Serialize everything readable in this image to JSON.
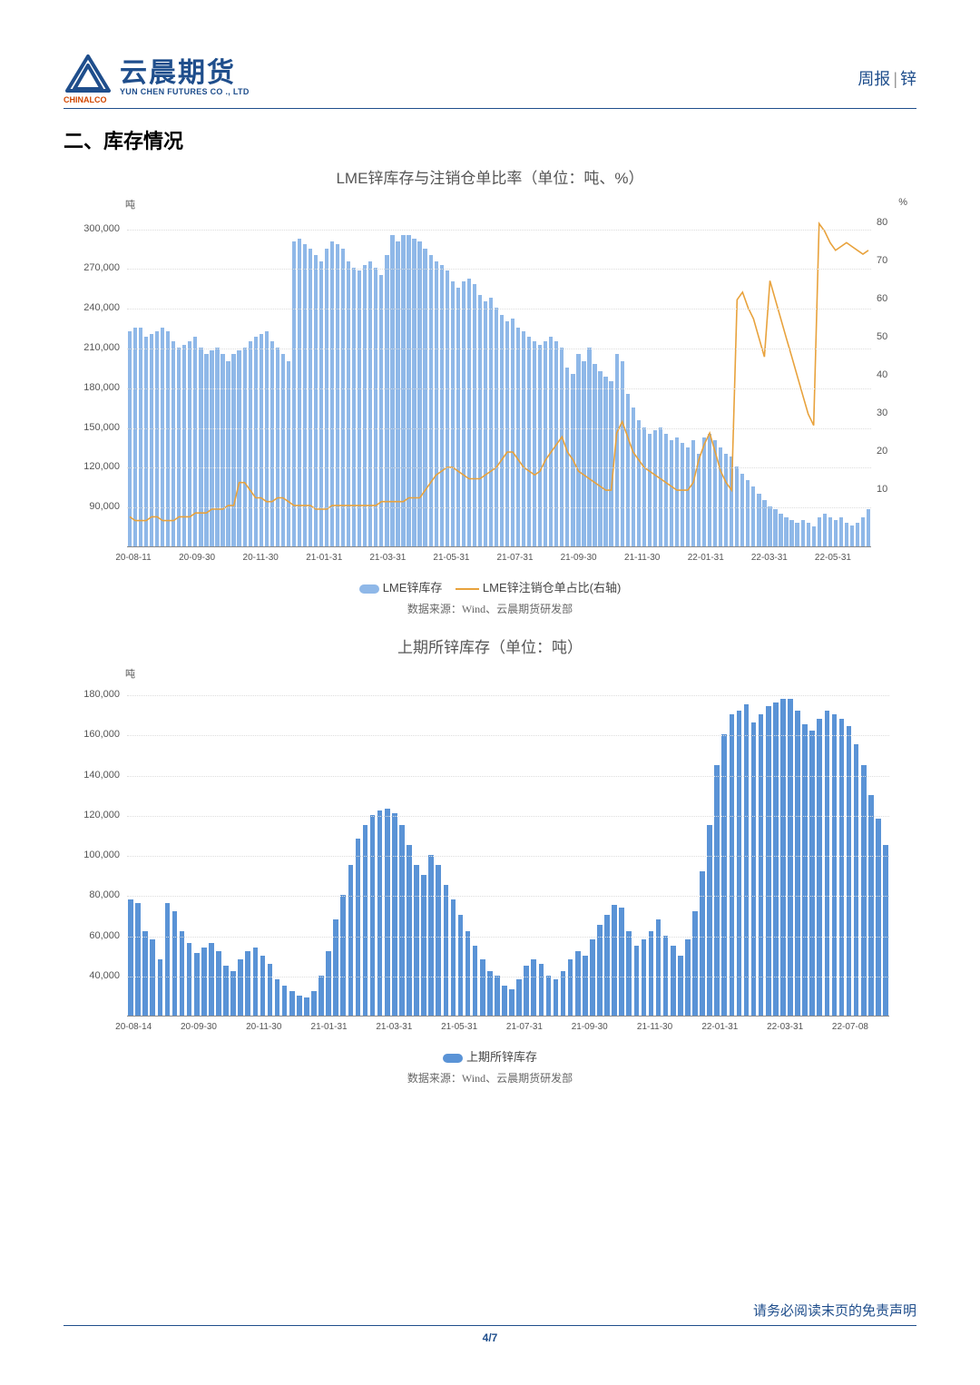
{
  "header": {
    "logo_cn": "云晨期货",
    "logo_en": "YUN CHEN FUTURES CO ., LTD",
    "logo_sub": "CHINALCO",
    "right_a": "周报",
    "right_b": "锌"
  },
  "section_title": "二、库存情况",
  "chart1": {
    "title": "LME锌库存与注销仓单比率（单位：吨、%）",
    "type": "bar+line",
    "bar_color": "#8fb8e8",
    "line_color": "#e8a23c",
    "y_left_unit": "吨",
    "y_right_unit": "%",
    "y_left_ticks": [
      90000,
      120000,
      150000,
      180000,
      210000,
      240000,
      270000,
      300000
    ],
    "y_left_min": 60000,
    "y_left_max": 310000,
    "y_right_ticks": [
      10,
      20,
      30,
      40,
      50,
      60,
      70,
      80
    ],
    "y_right_min": -5,
    "y_right_max": 82,
    "x_labels": [
      "20-08-11",
      "20-09-30",
      "20-11-30",
      "21-01-31",
      "21-03-31",
      "21-05-31",
      "21-07-31",
      "21-09-30",
      "21-11-30",
      "22-01-31",
      "22-03-31",
      "22-05-31"
    ],
    "bars": [
      222000,
      225000,
      225000,
      218000,
      220000,
      222000,
      225000,
      222000,
      215000,
      210000,
      212000,
      215000,
      218000,
      210000,
      205000,
      208000,
      210000,
      205000,
      200000,
      205000,
      208000,
      210000,
      215000,
      218000,
      220000,
      222000,
      215000,
      210000,
      205000,
      200000,
      290000,
      292000,
      288000,
      285000,
      280000,
      275000,
      285000,
      290000,
      288000,
      285000,
      275000,
      270000,
      268000,
      272000,
      275000,
      270000,
      265000,
      280000,
      295000,
      290000,
      295000,
      295000,
      292000,
      290000,
      285000,
      280000,
      275000,
      272000,
      268000,
      260000,
      255000,
      260000,
      262000,
      258000,
      250000,
      245000,
      248000,
      240000,
      235000,
      230000,
      232000,
      225000,
      222000,
      218000,
      215000,
      212000,
      215000,
      218000,
      215000,
      210000,
      195000,
      190000,
      205000,
      200000,
      210000,
      198000,
      192000,
      188000,
      185000,
      205000,
      200000,
      175000,
      165000,
      155000,
      150000,
      145000,
      148000,
      150000,
      145000,
      140000,
      142000,
      138000,
      135000,
      140000,
      130000,
      142000,
      145000,
      140000,
      135000,
      130000,
      128000,
      120000,
      115000,
      110000,
      105000,
      100000,
      95000,
      90000,
      88000,
      85000,
      82000,
      80000,
      78000,
      80000,
      78000,
      75000,
      82000,
      85000,
      82000,
      80000,
      82000,
      78000,
      76000,
      78000,
      82000,
      88000
    ],
    "line": [
      3,
      2,
      2,
      2,
      3,
      3,
      2,
      2,
      2,
      3,
      3,
      3,
      4,
      4,
      4,
      5,
      5,
      5,
      6,
      6,
      12,
      12,
      10,
      8,
      8,
      7,
      7,
      8,
      8,
      7,
      6,
      6,
      6,
      6,
      5,
      5,
      5,
      6,
      6,
      6,
      6,
      6,
      6,
      6,
      6,
      6,
      7,
      7,
      7,
      7,
      7,
      8,
      8,
      8,
      10,
      12,
      14,
      15,
      16,
      16,
      15,
      14,
      13,
      13,
      13,
      14,
      15,
      16,
      18,
      20,
      20,
      18,
      16,
      15,
      14,
      15,
      18,
      20,
      22,
      24,
      20,
      18,
      15,
      14,
      13,
      12,
      11,
      10,
      10,
      25,
      28,
      24,
      20,
      18,
      16,
      15,
      14,
      13,
      12,
      11,
      10,
      10,
      10,
      12,
      18,
      22,
      25,
      20,
      15,
      12,
      10,
      60,
      62,
      58,
      55,
      50,
      45,
      65,
      60,
      55,
      50,
      45,
      40,
      35,
      30,
      27,
      80,
      78,
      75,
      73,
      74,
      75,
      74,
      73,
      72,
      73
    ],
    "legend_bar": "LME锌库存",
    "legend_line": "LME锌注销仓单占比(右轴)",
    "source": "数据来源：Wind、云晨期货研发部"
  },
  "chart2": {
    "title": "上期所锌库存（单位：吨）",
    "type": "bar",
    "bar_color": "#5a93d6",
    "y_unit": "吨",
    "y_ticks": [
      40000,
      60000,
      80000,
      100000,
      120000,
      140000,
      160000,
      180000
    ],
    "y_min": 20000,
    "y_max": 185000,
    "x_labels": [
      "20-08-14",
      "20-09-30",
      "20-11-30",
      "21-01-31",
      "21-03-31",
      "21-05-31",
      "21-07-31",
      "21-09-30",
      "21-11-30",
      "22-01-31",
      "22-03-31",
      "22-07-08"
    ],
    "bars": [
      78000,
      76000,
      62000,
      58000,
      48000,
      76000,
      72000,
      62000,
      56000,
      51000,
      54000,
      56000,
      52000,
      45000,
      42000,
      48000,
      52000,
      54000,
      50000,
      46000,
      38000,
      35000,
      32000,
      30000,
      29000,
      32000,
      40000,
      52000,
      68000,
      80000,
      95000,
      108000,
      115000,
      120000,
      122000,
      123000,
      121000,
      115000,
      105000,
      95000,
      90000,
      100000,
      95000,
      85000,
      78000,
      70000,
      62000,
      55000,
      48000,
      42000,
      40000,
      35000,
      33000,
      38000,
      45000,
      48000,
      46000,
      40000,
      38000,
      42000,
      48000,
      52000,
      50000,
      58000,
      65000,
      70000,
      75000,
      74000,
      62000,
      55000,
      58000,
      62000,
      68000,
      60000,
      55000,
      50000,
      58000,
      72000,
      92000,
      115000,
      145000,
      160000,
      170000,
      172000,
      175000,
      166000,
      170000,
      174000,
      176000,
      178000,
      178000,
      172000,
      165000,
      162000,
      168000,
      172000,
      170000,
      168000,
      164000,
      155000,
      145000,
      130000,
      118000,
      105000
    ],
    "legend": "上期所锌库存",
    "source": "数据来源：Wind、云晨期货研发部"
  },
  "footer": {
    "disclaimer": "请务必阅读末页的免责声明",
    "page": "4",
    "total": "7"
  }
}
